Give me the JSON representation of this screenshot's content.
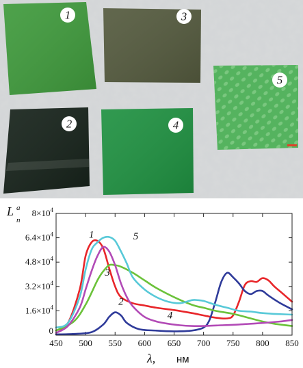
{
  "photo": {
    "samples": [
      {
        "id": "1",
        "label": "1",
        "color": "#3f9a3c"
      },
      {
        "id": "2",
        "label": "2",
        "color": "#16221a"
      },
      {
        "id": "3",
        "label": "3",
        "color": "#545a3e"
      },
      {
        "id": "4",
        "label": "4",
        "color": "#1f9141"
      },
      {
        "id": "5",
        "label": "5",
        "color": "#55b35f"
      }
    ]
  },
  "chart_data": {
    "type": "line",
    "ylabel_main": "L",
    "ylabel_sup": "a",
    "ylabel_sub": "n",
    "xlabel_symbol": "λ,",
    "xlabel_unit": "нм",
    "xlim": [
      450,
      850
    ],
    "ylim": [
      0,
      80000
    ],
    "xticks": [
      450,
      500,
      550,
      600,
      650,
      700,
      750,
      800,
      850
    ],
    "yticks": [
      {
        "value": 0,
        "base": "0",
        "exp": ""
      },
      {
        "value": 16000,
        "base": "1.6×10",
        "exp": "4"
      },
      {
        "value": 32000,
        "base": "3.2×10",
        "exp": "4"
      },
      {
        "value": 48000,
        "base": "4.8×10",
        "exp": "4"
      },
      {
        "value": 64000,
        "base": "6.4×10",
        "exp": "4"
      },
      {
        "value": 80000,
        "base": "8×10",
        "exp": "4"
      }
    ],
    "series": [
      {
        "label": "1",
        "color": "#e8262a",
        "x": [
          450,
          470,
          490,
          500,
          510,
          520,
          530,
          540,
          550,
          560,
          580,
          600,
          620,
          650,
          680,
          700,
          720,
          740,
          750,
          760,
          770,
          780,
          790,
          800,
          810,
          820,
          835,
          850
        ],
        "y": [
          3000,
          8000,
          30000,
          52000,
          61000,
          62000,
          57000,
          44000,
          32000,
          25000,
          21000,
          19500,
          18000,
          16500,
          14500,
          13000,
          11500,
          11000,
          13000,
          22000,
          33000,
          35500,
          35000,
          37500,
          36000,
          32000,
          27000,
          22000
        ]
      },
      {
        "label": "2",
        "color": "#2f3b9a",
        "x": [
          450,
          480,
          510,
          530,
          540,
          550,
          560,
          570,
          590,
          620,
          650,
          680,
          700,
          710,
          720,
          730,
          740,
          750,
          760,
          770,
          780,
          790,
          800,
          810,
          830,
          850
        ],
        "y": [
          500,
          800,
          2000,
          7000,
          12000,
          15000,
          13000,
          8000,
          4000,
          3000,
          2500,
          3000,
          5000,
          10000,
          22000,
          35000,
          41000,
          38000,
          34000,
          29000,
          27000,
          29000,
          29000,
          26000,
          21000,
          17000
        ]
      },
      {
        "label": "3",
        "color": "#6bc23a",
        "x": [
          450,
          480,
          500,
          520,
          530,
          540,
          550,
          560,
          580,
          600,
          620,
          650,
          680,
          700,
          720,
          750,
          780,
          800,
          820,
          850
        ],
        "y": [
          3000,
          9000,
          20000,
          36000,
          42000,
          46000,
          46000,
          45000,
          41000,
          36000,
          31000,
          25000,
          20000,
          18000,
          16000,
          14000,
          11000,
          9000,
          7500,
          6000
        ]
      },
      {
        "label": "4",
        "color": "#b24ab6",
        "x": [
          450,
          470,
          490,
          500,
          510,
          520,
          530,
          540,
          550,
          560,
          570,
          580,
          600,
          620,
          640,
          660,
          680,
          700,
          730,
          760,
          800,
          830,
          850
        ],
        "y": [
          1500,
          6000,
          18000,
          30000,
          42000,
          52000,
          58000,
          55000,
          46000,
          34000,
          25000,
          19000,
          12000,
          9000,
          7500,
          6500,
          6000,
          6000,
          6500,
          7000,
          8000,
          9000,
          10000
        ]
      },
      {
        "label": "5",
        "color": "#58c9d8",
        "x": [
          450,
          470,
          490,
          500,
          510,
          520,
          530,
          540,
          550,
          560,
          570,
          580,
          600,
          620,
          640,
          660,
          680,
          690,
          700,
          720,
          740,
          760,
          780,
          800,
          820,
          850
        ],
        "y": [
          5000,
          8000,
          25000,
          43000,
          56000,
          61000,
          64000,
          64500,
          62000,
          55000,
          47000,
          38000,
          30000,
          25000,
          22000,
          21000,
          23000,
          23000,
          22500,
          20000,
          18000,
          16000,
          15500,
          14500,
          14000,
          13500
        ]
      }
    ],
    "curve_labels": [
      {
        "text": "1",
        "x": 510,
        "y": 64000
      },
      {
        "text": "5",
        "x": 585,
        "y": 63000
      },
      {
        "text": "3",
        "x": 537,
        "y": 39000
      },
      {
        "text": "2",
        "x": 560,
        "y": 20000
      },
      {
        "text": "4",
        "x": 643,
        "y": 11000
      }
    ]
  }
}
